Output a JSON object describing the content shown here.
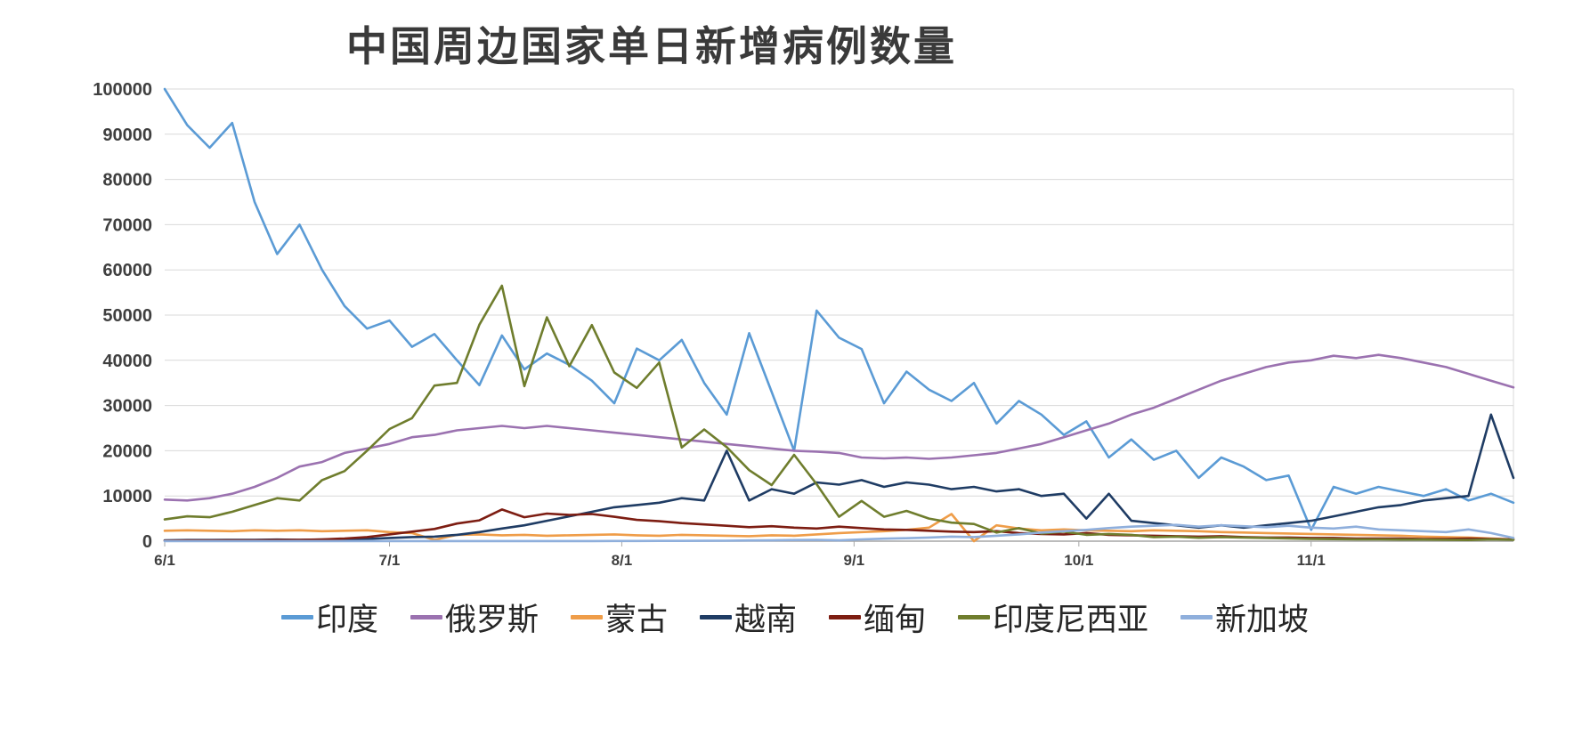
{
  "title": "中国周边国家单日新增病例数量",
  "chart_data": {
    "type": "line",
    "x": [
      "6/1",
      "6/4",
      "6/7",
      "6/10",
      "6/13",
      "6/16",
      "6/19",
      "6/22",
      "6/25",
      "6/28",
      "7/1",
      "7/4",
      "7/7",
      "7/10",
      "7/13",
      "7/16",
      "7/19",
      "7/22",
      "7/25",
      "7/28",
      "7/31",
      "8/3",
      "8/6",
      "8/9",
      "8/12",
      "8/15",
      "8/18",
      "8/21",
      "8/24",
      "8/27",
      "8/30",
      "9/2",
      "9/5",
      "9/8",
      "9/11",
      "9/14",
      "9/17",
      "9/20",
      "9/23",
      "9/26",
      "9/29",
      "10/2",
      "10/5",
      "10/8",
      "10/11",
      "10/14",
      "10/17",
      "10/20",
      "10/23",
      "10/26",
      "10/29",
      "11/1",
      "11/4",
      "11/7",
      "11/10",
      "11/13",
      "11/16",
      "11/19",
      "11/22",
      "11/25",
      "11/28"
    ],
    "series": [
      {
        "name": "印度",
        "color": "#5B9BD5",
        "values": [
          100000,
          92000,
          87000,
          92500,
          75000,
          63500,
          70000,
          60000,
          52000,
          47000,
          48800,
          43000,
          45800,
          40000,
          34500,
          45500,
          38000,
          41500,
          39000,
          35500,
          30500,
          42600,
          40000,
          44500,
          35000,
          28000,
          46000,
          33000,
          20000,
          51000,
          45000,
          42500,
          30500,
          37500,
          33500,
          31000,
          35000,
          26000,
          31000,
          28000,
          23500,
          26500,
          18500,
          22500,
          18000,
          20000,
          14000,
          18500,
          16500,
          13500,
          14500,
          2500,
          12000,
          10500,
          12000,
          11000,
          10000,
          11500,
          9000,
          10500,
          8500
        ]
      },
      {
        "name": "俄罗斯",
        "color": "#9B72B0",
        "values": [
          9200,
          9000,
          9500,
          10500,
          12000,
          14000,
          16500,
          17500,
          19500,
          20500,
          21500,
          23000,
          23500,
          24500,
          25000,
          25500,
          25000,
          25500,
          25000,
          24500,
          24000,
          23500,
          23000,
          22500,
          22000,
          21500,
          21000,
          20500,
          20000,
          19800,
          19500,
          18500,
          18300,
          18500,
          18200,
          18500,
          19000,
          19500,
          20500,
          21500,
          23000,
          24500,
          26000,
          28000,
          29500,
          31500,
          33500,
          35500,
          37000,
          38500,
          39500,
          40000,
          41000,
          40500,
          41200,
          40500,
          39500,
          38500,
          37000,
          35500,
          34000
        ]
      },
      {
        "name": "蒙古",
        "color": "#EF9D49",
        "values": [
          2300,
          2400,
          2300,
          2200,
          2400,
          2300,
          2400,
          2200,
          2300,
          2400,
          2000,
          1800,
          300,
          1400,
          1500,
          1300,
          1400,
          1200,
          1300,
          1400,
          1500,
          1300,
          1200,
          1400,
          1300,
          1200,
          1100,
          1300,
          1200,
          1500,
          1800,
          2000,
          2200,
          2500,
          3000,
          6000,
          0,
          3500,
          2800,
          2400,
          2600,
          2400,
          2300,
          2200,
          2400,
          2300,
          2200,
          2000,
          1900,
          1800,
          1700,
          1600,
          1500,
          1400,
          1300,
          1200,
          1000,
          900,
          800,
          600,
          400
        ]
      },
      {
        "name": "越南",
        "color": "#1F3C64",
        "values": [
          200,
          250,
          250,
          300,
          300,
          350,
          300,
          350,
          400,
          500,
          700,
          900,
          1000,
          1400,
          2000,
          2800,
          3500,
          4500,
          5500,
          6500,
          7500,
          8000,
          8500,
          9500,
          9000,
          20000,
          9000,
          11500,
          10500,
          13000,
          12500,
          13500,
          12000,
          13000,
          12500,
          11500,
          12000,
          11000,
          11500,
          10000,
          10500,
          5000,
          10500,
          4500,
          4000,
          3500,
          3000,
          3500,
          3000,
          3500,
          4000,
          4500,
          5500,
          6500,
          7500,
          8000,
          9000,
          9500,
          10000,
          28000,
          14000
        ]
      },
      {
        "name": "缅甸",
        "color": "#7D1D12",
        "values": [
          100,
          150,
          150,
          200,
          200,
          250,
          300,
          400,
          600,
          900,
          1500,
          2100,
          2700,
          3900,
          4600,
          7000,
          5300,
          6100,
          5800,
          6000,
          5400,
          4700,
          4400,
          4000,
          3700,
          3400,
          3100,
          3300,
          3000,
          2800,
          3200,
          2900,
          2600,
          2500,
          2300,
          2100,
          2000,
          2200,
          1800,
          1600,
          1500,
          1800,
          1400,
          1300,
          1200,
          1100,
          1000,
          1100,
          900,
          800,
          800,
          700,
          700,
          600,
          600,
          600,
          500,
          500,
          600,
          500,
          400
        ]
      },
      {
        "name": "印度尼西亚",
        "color": "#6F7D2D",
        "values": [
          4800,
          5500,
          5300,
          6500,
          8000,
          9500,
          9000,
          13500,
          15500,
          20000,
          24800,
          27200,
          34400,
          35000,
          47900,
          56500,
          34300,
          49500,
          38700,
          47800,
          37300,
          33900,
          39500,
          20700,
          24700,
          20800,
          15700,
          12400,
          19100,
          12600,
          5400,
          8900,
          5400,
          6700,
          5000,
          4100,
          3800,
          1900,
          2900,
          1700,
          2100,
          1400,
          1600,
          1400,
          900,
          1000,
          750,
          900,
          800,
          700,
          600,
          500,
          450,
          400,
          400,
          350,
          350,
          300,
          250,
          400,
          300
        ]
      },
      {
        "name": "新加坡",
        "color": "#8FAFDC",
        "values": [
          15,
          18,
          14,
          13,
          16,
          14,
          15,
          12,
          14,
          13,
          12,
          10,
          12,
          14,
          16,
          15,
          14,
          12,
          15,
          18,
          30,
          40,
          50,
          60,
          80,
          100,
          150,
          180,
          250,
          300,
          180,
          400,
          550,
          650,
          800,
          1000,
          900,
          1200,
          1500,
          1900,
          2200,
          2500,
          2900,
          3200,
          3400,
          3600,
          3200,
          3500,
          3300,
          3100,
          3400,
          3000,
          2800,
          3200,
          2600,
          2400,
          2200,
          2000,
          2600,
          1800,
          700
        ]
      }
    ],
    "ylim": [
      0,
      100000
    ],
    "y_ticks": [
      0,
      10000,
      20000,
      30000,
      40000,
      50000,
      60000,
      70000,
      80000,
      90000,
      100000
    ],
    "x_ticks": [
      {
        "label": "6/1",
        "day": 0
      },
      {
        "label": "7/1",
        "day": 30
      },
      {
        "label": "8/1",
        "day": 61
      },
      {
        "label": "9/1",
        "day": 92
      },
      {
        "label": "10/1",
        "day": 122
      },
      {
        "label": "11/1",
        "day": 153
      }
    ],
    "x_span_days": 180,
    "grid": true,
    "legend_position": "bottom",
    "colors": {
      "grid": "#D9D9D9",
      "axis": "#A6A6A6",
      "text": "#3F3F3F"
    }
  }
}
